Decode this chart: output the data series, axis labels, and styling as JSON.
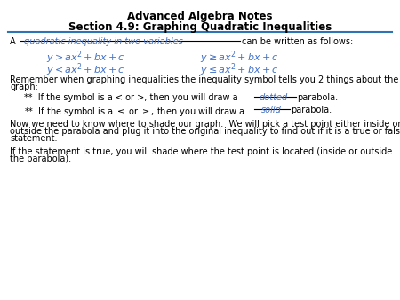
{
  "title_line1": "Advanced Algebra Notes",
  "title_line2": "Section 4.9: Graphing Quadratic Inequalities",
  "background_color": "#ffffff",
  "blue_color": "#4472C4",
  "black_color": "#000000",
  "underline_fill_text": "quadratic inequality in two variables",
  "font_size_title": 8.5,
  "font_size_body": 7.0,
  "font_size_math": 8.0
}
